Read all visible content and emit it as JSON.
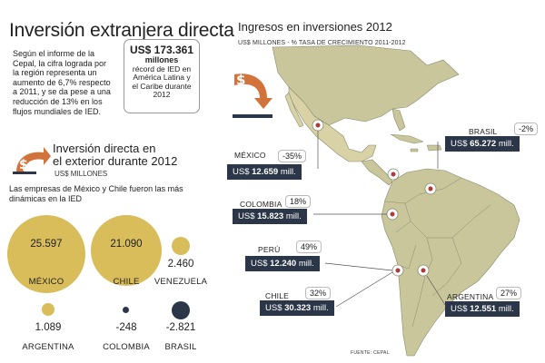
{
  "header": {
    "title": "Inversión extranjera directa"
  },
  "intro": {
    "text": "Según el informe de la Cepal, la cifra lograda por la región representa un aumento de 6,7% respecto a 2011, y se da pese a una reducción de 13% en los flujos mundiales de IED."
  },
  "callout": {
    "amount": "US$ 173.361",
    "unit": "millones",
    "caption": "récord de IED en América Latina y el Caribe durante 2012"
  },
  "outward": {
    "title_line1": "Inversión directa en",
    "title_line2": "el exterior durante 2012",
    "unit": "US$ MILLONES",
    "note": "Las empresas de México y Chile fueron las más dinámicas en la IED",
    "countries": [
      {
        "name": "MÉXICO",
        "value": "25.597",
        "amount": 25597,
        "color": "#d8bd5a"
      },
      {
        "name": "CHILE",
        "value": "21.090",
        "amount": 21090,
        "color": "#d8bd5a"
      },
      {
        "name": "VENEZUELA",
        "value": "2.460",
        "amount": 2460,
        "color": "#d8bd5a"
      },
      {
        "name": "ARGENTINA",
        "value": "1.089",
        "amount": 1089,
        "color": "#d8bd5a"
      },
      {
        "name": "COLOMBIA",
        "value": "-248",
        "amount": -248,
        "color": "#2b3648"
      },
      {
        "name": "BRASIL",
        "value": "-2.821",
        "amount": -2821,
        "color": "#2b3648"
      }
    ]
  },
  "map": {
    "title": "Ingresos en inversiones 2012",
    "subtitle": "US$ MILLONES - % TASA DE CRECIMIENTO 2011-2012",
    "labels": [
      {
        "country": "MÉXICO",
        "pct": "-35%",
        "prefix": "US$",
        "amount": "12.659",
        "suffix": "mill."
      },
      {
        "country": "BRASIL",
        "pct": "-2%",
        "prefix": "US$",
        "amount": "65.272",
        "suffix": "mill."
      },
      {
        "country": "COLOMBIA",
        "pct": "18%",
        "prefix": "US$",
        "amount": "15.823",
        "suffix": "mill."
      },
      {
        "country": "PERÚ",
        "pct": "49%",
        "prefix": "US$",
        "amount": "12.240",
        "suffix": "mill."
      },
      {
        "country": "CHILE",
        "pct": "32%",
        "prefix": "US$",
        "amount": "30.323",
        "suffix": "mill."
      },
      {
        "country": "ARGENTINA",
        "pct": "27%",
        "prefix": "US$",
        "amount": "12.551",
        "suffix": "mill."
      }
    ],
    "source": "FUENTE: CEPAL",
    "colors": {
      "land": "#c9c69b",
      "highlight": "#d9d2a6",
      "ocean": "#ffffff",
      "marker": "#b03a3a",
      "label_bg": "#2b3648",
      "arrow": "#d2733c"
    }
  }
}
